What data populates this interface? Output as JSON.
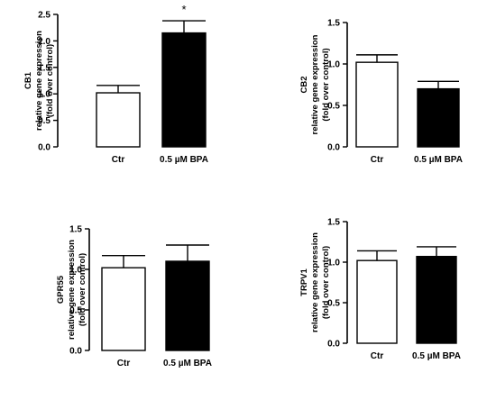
{
  "chart_data": [
    {
      "type": "bar",
      "panel": "CB1",
      "ylabel_lines": [
        "CB1",
        "relative gene expression",
        "(fold over control)"
      ],
      "categories": [
        "Ctr",
        "0.5 µM BPA"
      ],
      "values": [
        1.02,
        2.15
      ],
      "errors": [
        0.14,
        0.23
      ],
      "bar_colors": [
        "#ffffff",
        "#000000"
      ],
      "ylim": [
        0,
        2.5
      ],
      "yticks": [
        "0.0",
        "0.5",
        "1.0",
        "1.5",
        "2.0",
        "2.5"
      ],
      "annotations": [
        {
          "category": "0.5 µM BPA",
          "text": "*"
        }
      ]
    },
    {
      "type": "bar",
      "panel": "CB2",
      "ylabel_lines": [
        "CB2",
        "relative gene expression",
        "(fold over control)"
      ],
      "categories": [
        "Ctr",
        "0.5 µM BPA"
      ],
      "values": [
        1.02,
        0.7
      ],
      "errors": [
        0.09,
        0.09
      ],
      "bar_colors": [
        "#ffffff",
        "#000000"
      ],
      "ylim": [
        0,
        1.5
      ],
      "yticks": [
        "0.0",
        "0.5",
        "1.0",
        "1.5"
      ],
      "annotations": []
    },
    {
      "type": "bar",
      "panel": "GPR55",
      "ylabel_lines": [
        "GPR55",
        "relative gene expression",
        "(fold over control)"
      ],
      "categories": [
        "Ctr",
        "0.5 µM BPA"
      ],
      "values": [
        1.02,
        1.1
      ],
      "errors": [
        0.15,
        0.2
      ],
      "bar_colors": [
        "#ffffff",
        "#000000"
      ],
      "ylim": [
        0,
        1.5
      ],
      "yticks": [
        "0.0",
        "0.5",
        "1.0",
        "1.5"
      ],
      "annotations": []
    },
    {
      "type": "bar",
      "panel": "TRPV1",
      "ylabel_lines": [
        "TRPV1",
        "relative gene expression",
        "(fold over control)"
      ],
      "categories": [
        "Ctr",
        "0.5 µM BPA"
      ],
      "values": [
        1.02,
        1.07
      ],
      "errors": [
        0.12,
        0.12
      ],
      "bar_colors": [
        "#ffffff",
        "#000000"
      ],
      "ylim": [
        0,
        1.5
      ],
      "yticks": [
        "0.0",
        "0.5",
        "1.0",
        "1.5"
      ],
      "annotations": []
    }
  ]
}
